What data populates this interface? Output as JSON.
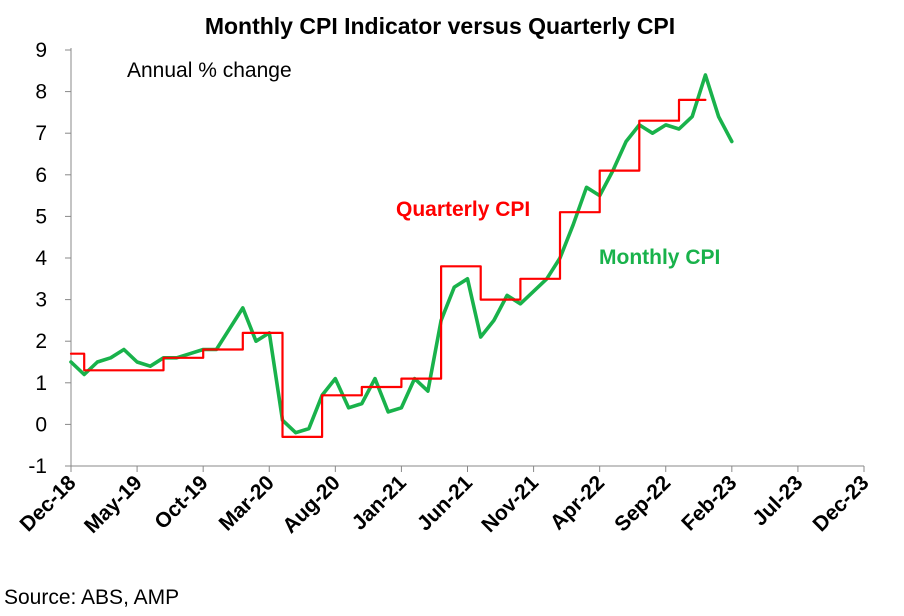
{
  "chart_data": {
    "type": "line",
    "title": "Monthly CPI Indicator versus Quarterly CPI",
    "subtitle": "Annual % change",
    "xlabel": "",
    "ylabel": "",
    "ylim": [
      -1,
      9
    ],
    "yticks": [
      "-1",
      "0",
      "1",
      "2",
      "3",
      "4",
      "5",
      "6",
      "7",
      "8",
      "9"
    ],
    "x_start": "Dec-18",
    "x_months": 60,
    "xtick_step": 5,
    "xticks": [
      "Dec-18",
      "May-19",
      "Oct-19",
      "Mar-20",
      "Aug-20",
      "Jan-21",
      "Jun-21",
      "Nov-21",
      "Apr-22",
      "Sep-22",
      "Feb-23",
      "Jul-23",
      "Dec-23"
    ],
    "grid": false,
    "legend": "inline labels",
    "series": [
      {
        "name": "Quarterly CPI",
        "label": "Quarterly CPI",
        "color": "#ff0000",
        "step": true,
        "values": [
          [
            0,
            1.7
          ],
          [
            1,
            1.3
          ],
          [
            4,
            1.3
          ],
          [
            7,
            1.6
          ],
          [
            10,
            1.8
          ],
          [
            13,
            2.2
          ],
          [
            16,
            -0.3
          ],
          [
            19,
            0.7
          ],
          [
            22,
            0.9
          ],
          [
            25,
            1.1
          ],
          [
            28,
            3.8
          ],
          [
            31,
            3.0
          ],
          [
            34,
            3.5
          ],
          [
            37,
            5.1
          ],
          [
            40,
            6.1
          ],
          [
            43,
            7.3
          ],
          [
            46,
            7.8
          ],
          [
            48,
            7.8
          ]
        ]
      },
      {
        "name": "Monthly CPI",
        "label": "Monthly CPI",
        "color": "#19b24b",
        "step": false,
        "values": [
          [
            0,
            1.5
          ],
          [
            1,
            1.2
          ],
          [
            2,
            1.5
          ],
          [
            3,
            1.6
          ],
          [
            4,
            1.8
          ],
          [
            5,
            1.5
          ],
          [
            6,
            1.4
          ],
          [
            7,
            1.6
          ],
          [
            8,
            1.6
          ],
          [
            9,
            1.7
          ],
          [
            10,
            1.8
          ],
          [
            11,
            1.8
          ],
          [
            12,
            2.3
          ],
          [
            13,
            2.8
          ],
          [
            14,
            2.0
          ],
          [
            15,
            2.2
          ],
          [
            16,
            0.1
          ],
          [
            17,
            -0.2
          ],
          [
            18,
            -0.1
          ],
          [
            19,
            0.7
          ],
          [
            20,
            1.1
          ],
          [
            21,
            0.4
          ],
          [
            22,
            0.5
          ],
          [
            23,
            1.1
          ],
          [
            24,
            0.3
          ],
          [
            25,
            0.4
          ],
          [
            26,
            1.1
          ],
          [
            27,
            0.8
          ],
          [
            28,
            2.5
          ],
          [
            29,
            3.3
          ],
          [
            30,
            3.5
          ],
          [
            31,
            2.1
          ],
          [
            32,
            2.5
          ],
          [
            33,
            3.1
          ],
          [
            34,
            2.9
          ],
          [
            35,
            3.2
          ],
          [
            36,
            3.5
          ],
          [
            37,
            4.0
          ],
          [
            38,
            4.8
          ],
          [
            39,
            5.7
          ],
          [
            40,
            5.5
          ],
          [
            41,
            6.1
          ],
          [
            42,
            6.8
          ],
          [
            43,
            7.2
          ],
          [
            44,
            7.0
          ],
          [
            45,
            7.2
          ],
          [
            46,
            7.1
          ],
          [
            47,
            7.4
          ],
          [
            48,
            8.4
          ],
          [
            49,
            7.4
          ],
          [
            50,
            6.8
          ]
        ]
      }
    ]
  },
  "source": "Source: ABS, AMP"
}
